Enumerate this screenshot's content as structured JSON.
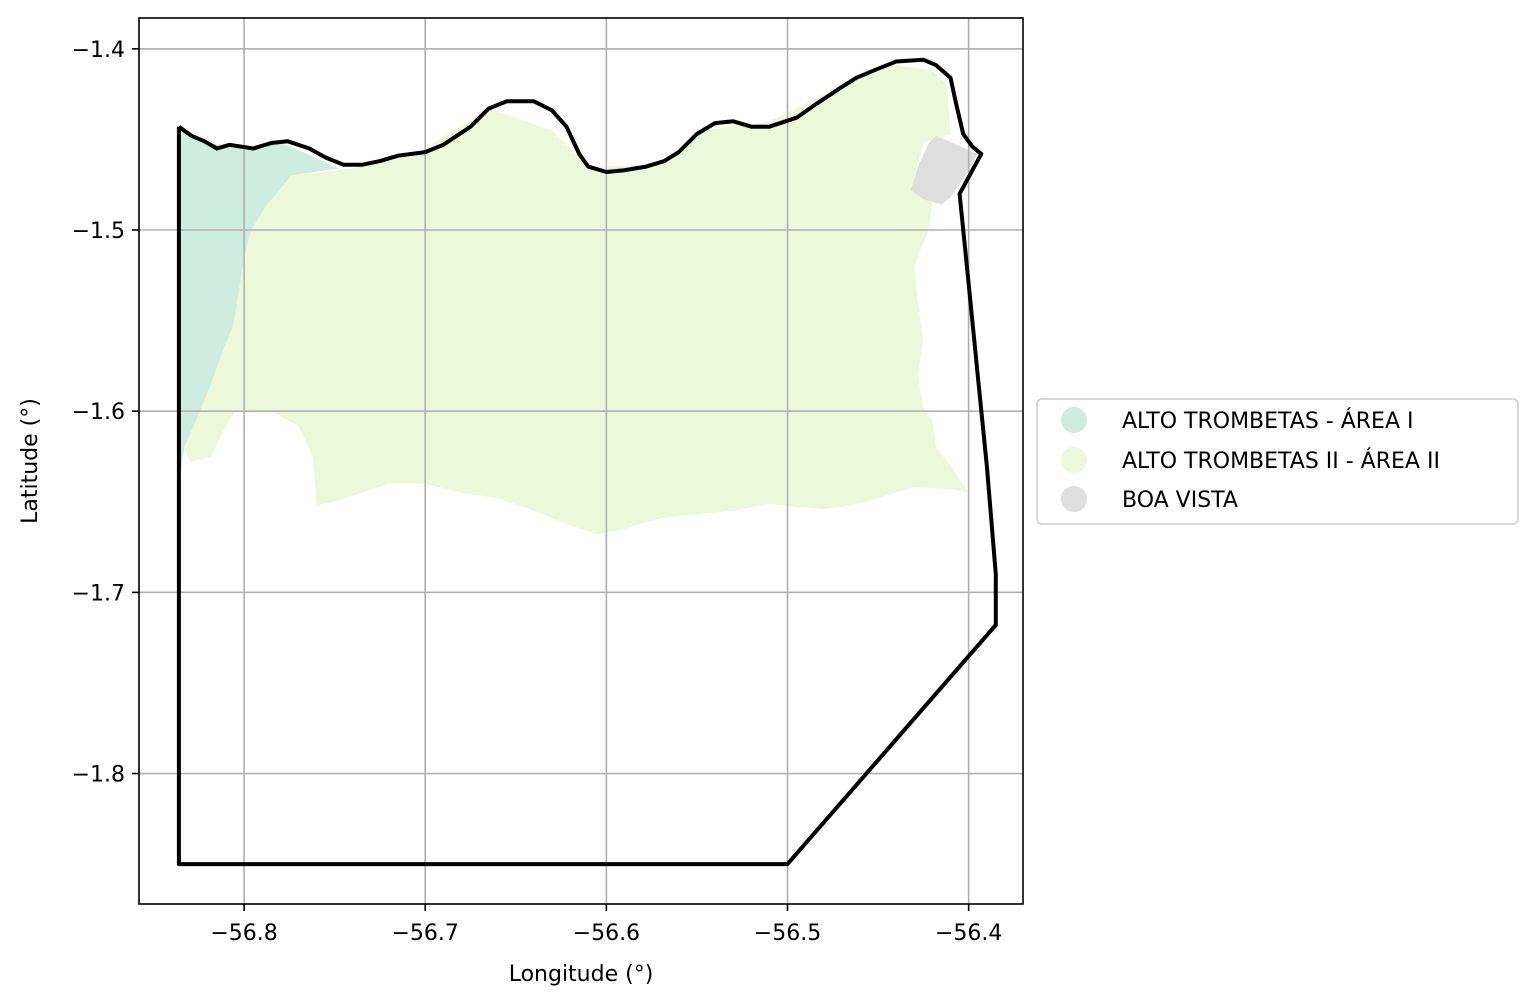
{
  "chart_data": {
    "type": "map",
    "xlabel": "Longitude (°)",
    "ylabel": "Latitude (°)",
    "xlim": [
      -56.858,
      -56.37
    ],
    "ylim": [
      -1.872,
      -1.383
    ],
    "grid": true,
    "legend_placement": "center-right, outside axes",
    "xticks": [
      {
        "value": -56.8,
        "label": "−56.8"
      },
      {
        "value": -56.7,
        "label": "−56.7"
      },
      {
        "value": -56.6,
        "label": "−56.6"
      },
      {
        "value": -56.5,
        "label": "−56.5"
      },
      {
        "value": -56.4,
        "label": "−56.4"
      }
    ],
    "yticks": [
      {
        "value": -1.4,
        "label": "−1.4"
      },
      {
        "value": -1.5,
        "label": "−1.5"
      },
      {
        "value": -1.6,
        "label": "−1.6"
      },
      {
        "value": -1.7,
        "label": "−1.7"
      },
      {
        "value": -1.8,
        "label": "−1.8"
      }
    ],
    "regions": [
      {
        "name": "ALTO TROMBETAS II - ÁREA II",
        "color": "#edf8db",
        "coords": [
          [
            -56.788,
            -1.487
          ],
          [
            -56.774,
            -1.47
          ],
          [
            -56.74,
            -1.466
          ],
          [
            -56.7,
            -1.455
          ],
          [
            -56.665,
            -1.433
          ],
          [
            -56.63,
            -1.445
          ],
          [
            -56.61,
            -1.465
          ],
          [
            -56.57,
            -1.464
          ],
          [
            -56.545,
            -1.445
          ],
          [
            -56.51,
            -1.44
          ],
          [
            -56.485,
            -1.428
          ],
          [
            -56.46,
            -1.414
          ],
          [
            -56.44,
            -1.409
          ],
          [
            -56.42,
            -1.412
          ],
          [
            -56.412,
            -1.42
          ],
          [
            -56.41,
            -1.447
          ],
          [
            -56.425,
            -1.452
          ],
          [
            -56.432,
            -1.478
          ],
          [
            -56.42,
            -1.484
          ],
          [
            -56.422,
            -1.5
          ],
          [
            -56.43,
            -1.52
          ],
          [
            -56.428,
            -1.54
          ],
          [
            -56.425,
            -1.56
          ],
          [
            -56.428,
            -1.58
          ],
          [
            -56.425,
            -1.598
          ],
          [
            -56.42,
            -1.605
          ],
          [
            -56.418,
            -1.62
          ],
          [
            -56.41,
            -1.63
          ],
          [
            -56.4,
            -1.645
          ],
          [
            -56.41,
            -1.643
          ],
          [
            -56.43,
            -1.642
          ],
          [
            -56.45,
            -1.648
          ],
          [
            -56.465,
            -1.652
          ],
          [
            -56.48,
            -1.654
          ],
          [
            -56.495,
            -1.653
          ],
          [
            -56.51,
            -1.651
          ],
          [
            -56.53,
            -1.655
          ],
          [
            -56.55,
            -1.657
          ],
          [
            -56.57,
            -1.659
          ],
          [
            -56.59,
            -1.665
          ],
          [
            -56.605,
            -1.668
          ],
          [
            -56.62,
            -1.663
          ],
          [
            -56.64,
            -1.655
          ],
          [
            -56.66,
            -1.648
          ],
          [
            -56.68,
            -1.645
          ],
          [
            -56.7,
            -1.64
          ],
          [
            -56.72,
            -1.64
          ],
          [
            -56.735,
            -1.645
          ],
          [
            -56.75,
            -1.65
          ],
          [
            -56.76,
            -1.652
          ],
          [
            -56.762,
            -1.625
          ],
          [
            -56.77,
            -1.608
          ],
          [
            -56.785,
            -1.6
          ],
          [
            -56.805,
            -1.6
          ],
          [
            -56.812,
            -1.612
          ],
          [
            -56.818,
            -1.625
          ],
          [
            -56.83,
            -1.628
          ],
          [
            -56.833,
            -1.62
          ],
          [
            -56.826,
            -1.604
          ],
          [
            -56.819,
            -1.587
          ],
          [
            -56.813,
            -1.57
          ],
          [
            -56.806,
            -1.553
          ],
          [
            -56.803,
            -1.535
          ],
          [
            -56.8,
            -1.515
          ],
          [
            -56.796,
            -1.5
          ]
        ]
      },
      {
        "name": "ALTO TROMBETAS - ÁREA I",
        "color": "#cfece0",
        "coords": [
          [
            -56.836,
            -1.443
          ],
          [
            -56.82,
            -1.452
          ],
          [
            -56.8,
            -1.455
          ],
          [
            -56.78,
            -1.452
          ],
          [
            -56.765,
            -1.458
          ],
          [
            -56.748,
            -1.466
          ],
          [
            -56.774,
            -1.47
          ],
          [
            -56.788,
            -1.487
          ],
          [
            -56.796,
            -1.5
          ],
          [
            -56.8,
            -1.515
          ],
          [
            -56.803,
            -1.535
          ],
          [
            -56.806,
            -1.553
          ],
          [
            -56.813,
            -1.57
          ],
          [
            -56.819,
            -1.587
          ],
          [
            -56.826,
            -1.604
          ],
          [
            -56.833,
            -1.62
          ],
          [
            -56.835,
            -1.635
          ]
        ]
      },
      {
        "name": "BOA VISTA",
        "color": "#dedede",
        "coords": [
          [
            -56.418,
            -1.448
          ],
          [
            -56.395,
            -1.458
          ],
          [
            -56.402,
            -1.47
          ],
          [
            -56.41,
            -1.482
          ],
          [
            -56.415,
            -1.486
          ],
          [
            -56.425,
            -1.483
          ],
          [
            -56.432,
            -1.478
          ],
          [
            -56.428,
            -1.465
          ],
          [
            -56.422,
            -1.452
          ]
        ]
      }
    ],
    "boundary": {
      "color": "#000000",
      "coords": [
        [
          -56.836,
          -1.443
        ],
        [
          -56.829,
          -1.448
        ],
        [
          -56.822,
          -1.451
        ],
        [
          -56.815,
          -1.455
        ],
        [
          -56.808,
          -1.453
        ],
        [
          -56.795,
          -1.455
        ],
        [
          -56.785,
          -1.452
        ],
        [
          -56.776,
          -1.451
        ],
        [
          -56.764,
          -1.455
        ],
        [
          -56.755,
          -1.46
        ],
        [
          -56.745,
          -1.464
        ],
        [
          -56.735,
          -1.464
        ],
        [
          -56.725,
          -1.462
        ],
        [
          -56.715,
          -1.459
        ],
        [
          -56.7,
          -1.457
        ],
        [
          -56.69,
          -1.453
        ],
        [
          -56.675,
          -1.443
        ],
        [
          -56.665,
          -1.433
        ],
        [
          -56.655,
          -1.429
        ],
        [
          -56.64,
          -1.429
        ],
        [
          -56.63,
          -1.434
        ],
        [
          -56.622,
          -1.443
        ],
        [
          -56.615,
          -1.458
        ],
        [
          -56.61,
          -1.465
        ],
        [
          -56.6,
          -1.468
        ],
        [
          -56.59,
          -1.467
        ],
        [
          -56.578,
          -1.465
        ],
        [
          -56.568,
          -1.462
        ],
        [
          -56.56,
          -1.457
        ],
        [
          -56.55,
          -1.447
        ],
        [
          -56.54,
          -1.441
        ],
        [
          -56.53,
          -1.44
        ],
        [
          -56.52,
          -1.443
        ],
        [
          -56.51,
          -1.443
        ],
        [
          -56.495,
          -1.438
        ],
        [
          -56.485,
          -1.431
        ],
        [
          -56.47,
          -1.421
        ],
        [
          -56.462,
          -1.416
        ],
        [
          -56.45,
          -1.411
        ],
        [
          -56.44,
          -1.407
        ],
        [
          -56.425,
          -1.406
        ],
        [
          -56.418,
          -1.409
        ],
        [
          -56.41,
          -1.416
        ],
        [
          -56.407,
          -1.43
        ],
        [
          -56.403,
          -1.447
        ],
        [
          -56.398,
          -1.454
        ],
        [
          -56.393,
          -1.458
        ],
        [
          -56.405,
          -1.48
        ],
        [
          -56.4,
          -1.53
        ],
        [
          -56.395,
          -1.58
        ],
        [
          -56.39,
          -1.63
        ],
        [
          -56.385,
          -1.69
        ],
        [
          -56.385,
          -1.718
        ],
        [
          -56.5,
          -1.85
        ],
        [
          -56.836,
          -1.85
        ],
        [
          -56.836,
          -1.443
        ]
      ]
    },
    "legend": [
      {
        "label": "ALTO TROMBETAS - ÁREA I",
        "color": "#cfece0"
      },
      {
        "label": "ALTO TROMBETAS II - ÁREA II",
        "color": "#edf8db"
      },
      {
        "label": "BOA VISTA",
        "color": "#dedede"
      }
    ],
    "colors": {
      "grid": "#b0b0b0",
      "axes": "#000000",
      "legend_border": "#cccccc"
    }
  }
}
